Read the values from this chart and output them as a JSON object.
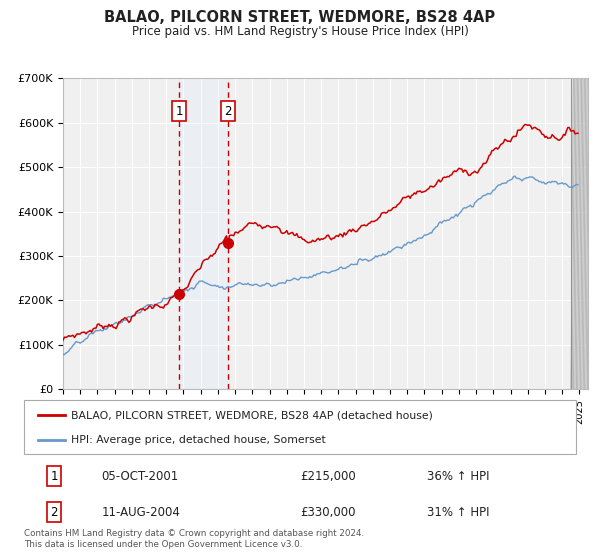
{
  "title": "BALAO, PILCORN STREET, WEDMORE, BS28 4AP",
  "subtitle": "Price paid vs. HM Land Registry's House Price Index (HPI)",
  "title_fontsize": 10.5,
  "subtitle_fontsize": 8.5,
  "background_color": "#ffffff",
  "plot_background_color": "#f0f0f0",
  "grid_color": "#ffffff",
  "red_line_color": "#cc0000",
  "blue_line_color": "#6699cc",
  "dashed_line_color": "#cc0000",
  "shade_color": "#ddeeff",
  "legend_label_red": "BALAO, PILCORN STREET, WEDMORE, BS28 4AP (detached house)",
  "legend_label_blue": "HPI: Average price, detached house, Somerset",
  "table_row1": [
    "1",
    "05-OCT-2001",
    "£215,000",
    "36% ↑ HPI"
  ],
  "table_row2": [
    "2",
    "11-AUG-2004",
    "£330,000",
    "31% ↑ HPI"
  ],
  "footer": "Contains HM Land Registry data © Crown copyright and database right 2024.\nThis data is licensed under the Open Government Licence v3.0.",
  "ylim": [
    0,
    700000
  ],
  "yticks": [
    0,
    100000,
    200000,
    300000,
    400000,
    500000,
    600000,
    700000
  ],
  "ytick_labels": [
    "£0",
    "£100K",
    "£200K",
    "£300K",
    "£400K",
    "£500K",
    "£600K",
    "£700K"
  ],
  "xstart_year": 1995,
  "xend_year": 2025,
  "marker1_year": 2001.75,
  "marker2_year": 2004.58,
  "marker1_value": 215000,
  "marker2_value": 330000,
  "hatch_color": "#aaaaaa"
}
